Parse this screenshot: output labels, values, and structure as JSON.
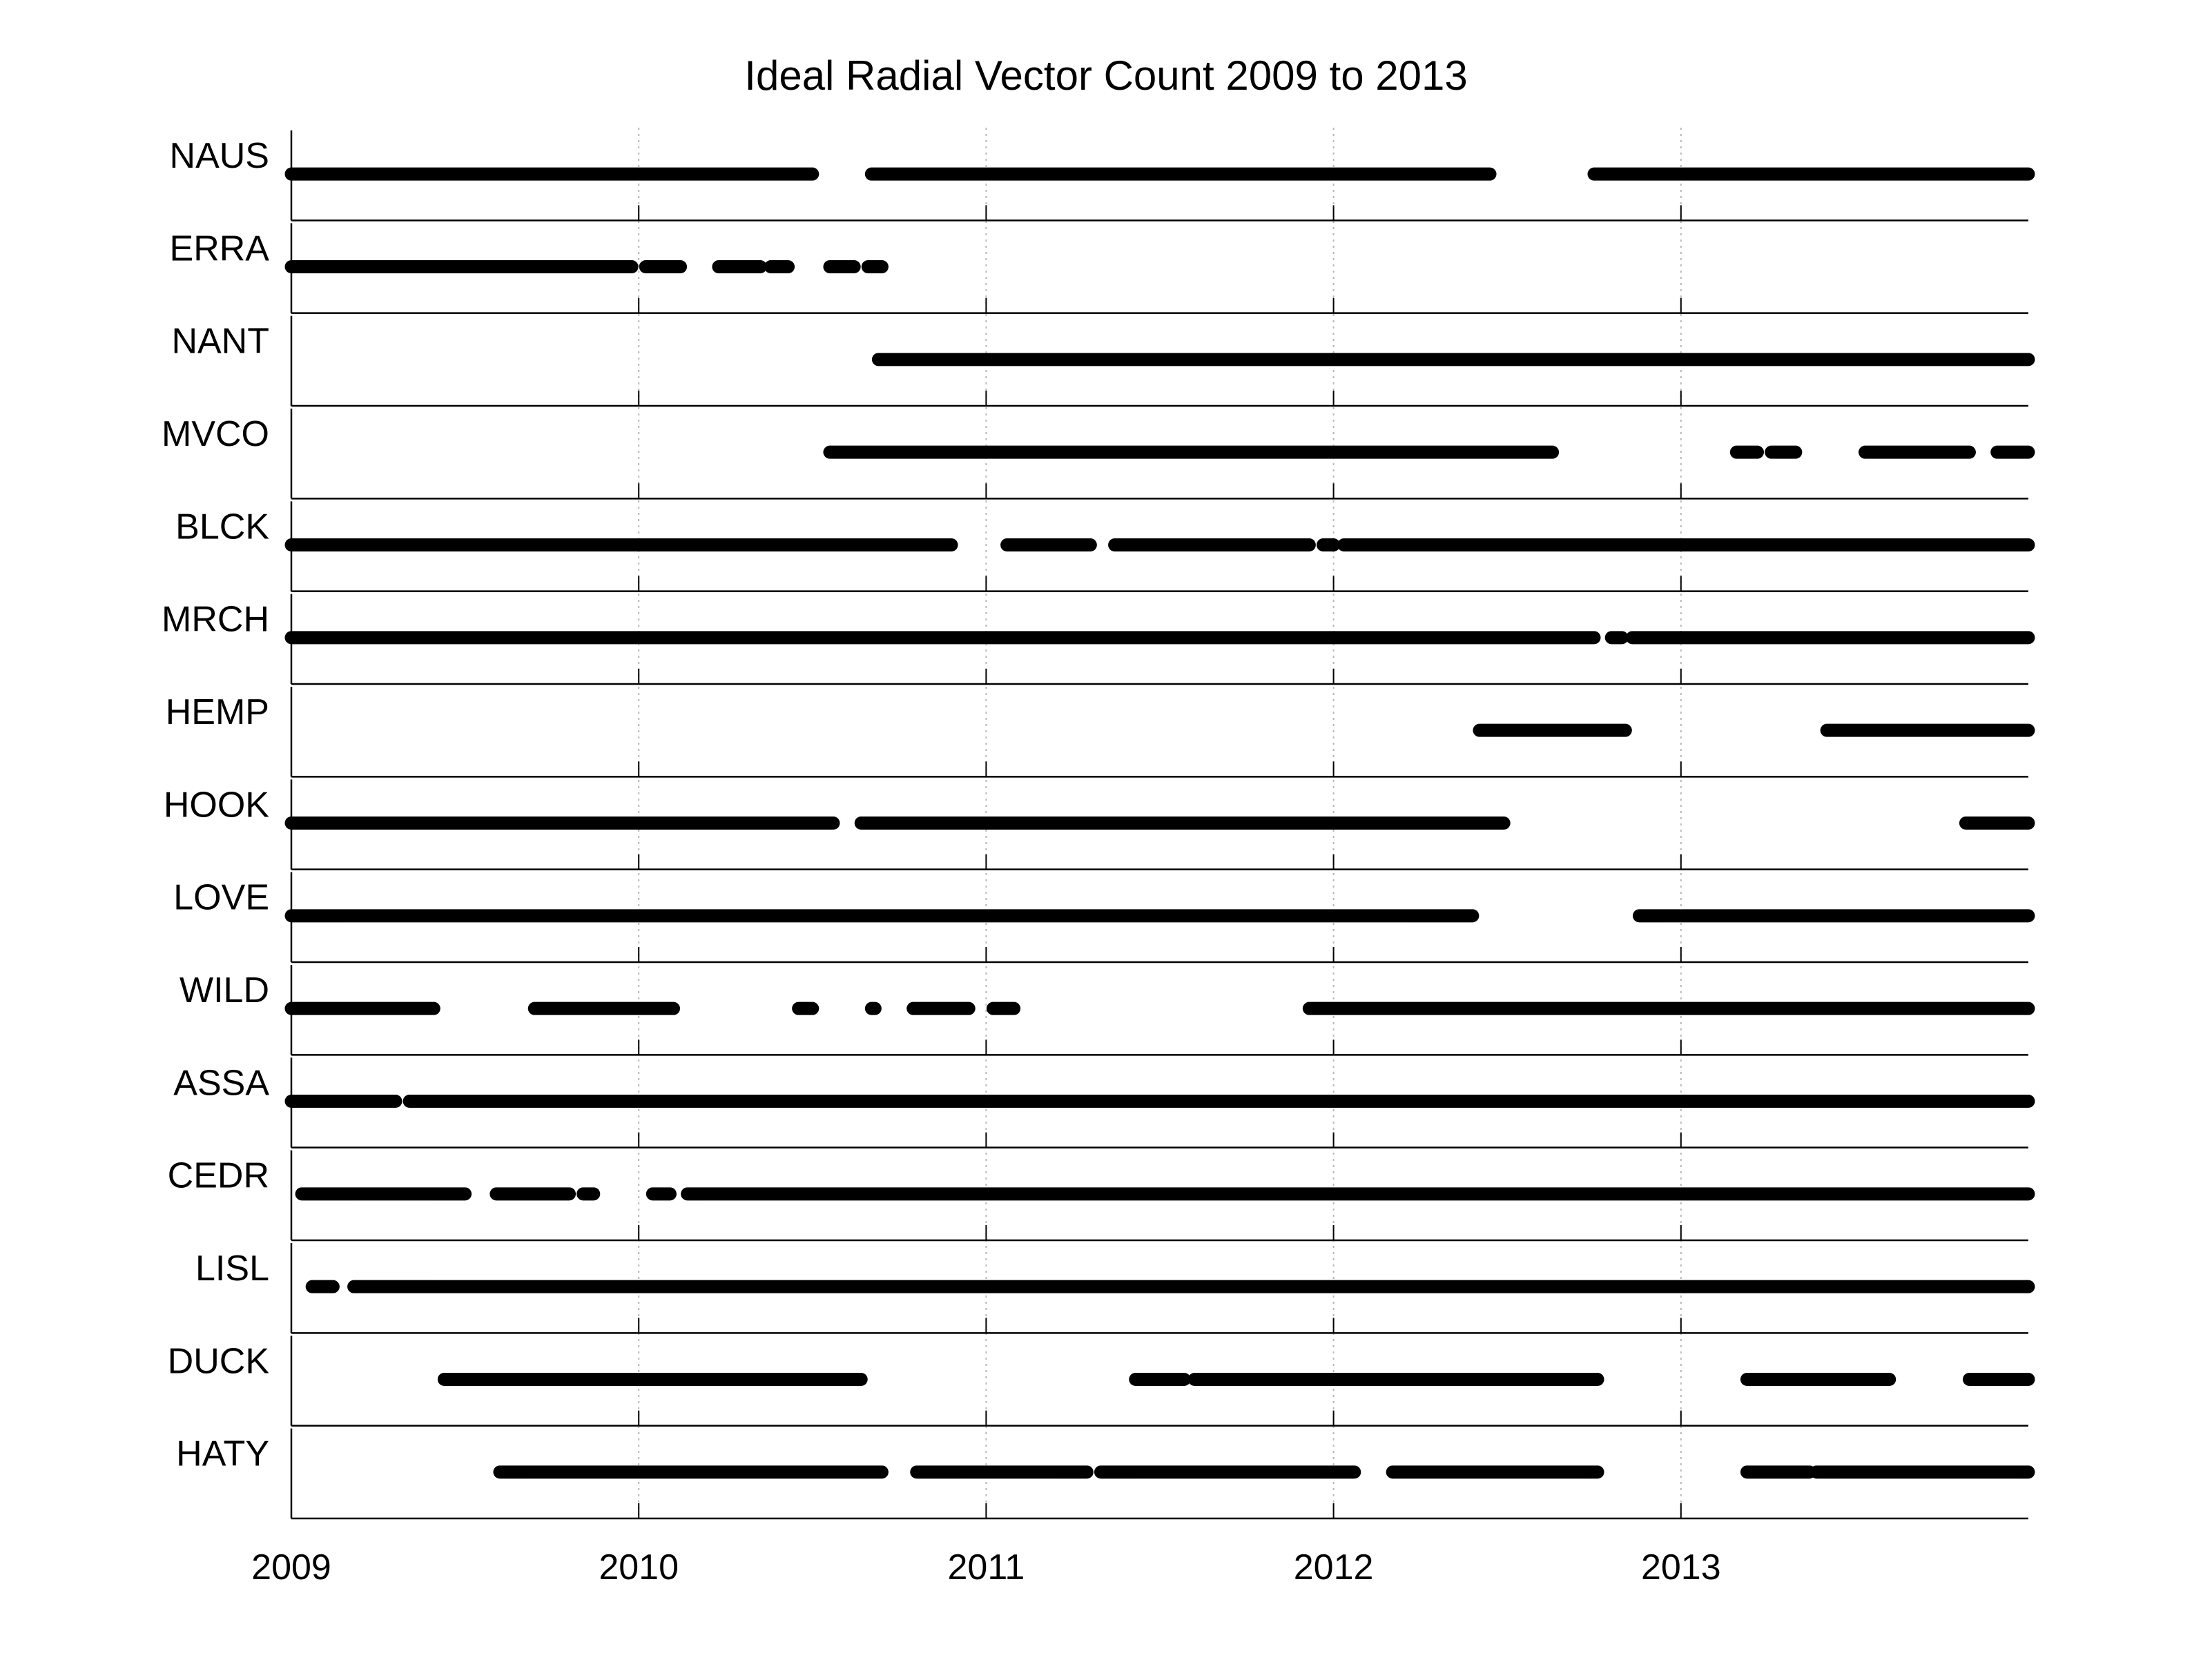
{
  "chart_data": {
    "type": "timeline",
    "title": "Ideal Radial Vector Count 2009 to  2013",
    "x_ticks": [
      "2009",
      "2010",
      "2011",
      "2012",
      "2013"
    ],
    "x_range": [
      2009.0,
      2014.0
    ],
    "grid": "vertical-dotted",
    "series_color": "#000000",
    "series": [
      {
        "name": "NAUS",
        "segments": [
          [
            2009.0,
            2010.5
          ],
          [
            2010.67,
            2012.45
          ],
          [
            2012.75,
            2014.0
          ]
        ]
      },
      {
        "name": "ERRA",
        "segments": [
          [
            2009.0,
            2009.98
          ],
          [
            2010.02,
            2010.12
          ],
          [
            2010.23,
            2010.35
          ],
          [
            2010.38,
            2010.43
          ],
          [
            2010.55,
            2010.62
          ],
          [
            2010.66,
            2010.7
          ]
        ]
      },
      {
        "name": "NANT",
        "segments": [
          [
            2010.69,
            2014.0
          ]
        ]
      },
      {
        "name": "MVCO",
        "segments": [
          [
            2010.55,
            2012.63
          ],
          [
            2013.16,
            2013.22
          ],
          [
            2013.26,
            2013.33
          ],
          [
            2013.53,
            2013.83
          ],
          [
            2013.91,
            2014.0
          ]
        ]
      },
      {
        "name": "BLCK",
        "segments": [
          [
            2009.0,
            2010.9
          ],
          [
            2011.06,
            2011.3
          ],
          [
            2011.37,
            2011.93
          ],
          [
            2011.97,
            2012.0
          ],
          [
            2012.03,
            2014.0
          ]
        ]
      },
      {
        "name": "MRCH",
        "segments": [
          [
            2009.0,
            2012.75
          ],
          [
            2012.8,
            2012.83
          ],
          [
            2012.86,
            2014.0
          ]
        ]
      },
      {
        "name": "HEMP",
        "segments": [
          [
            2012.42,
            2012.84
          ],
          [
            2013.42,
            2014.0
          ]
        ]
      },
      {
        "name": "HOOK",
        "segments": [
          [
            2009.0,
            2010.56
          ],
          [
            2010.64,
            2012.49
          ],
          [
            2013.82,
            2014.0
          ]
        ]
      },
      {
        "name": "LOVE",
        "segments": [
          [
            2009.0,
            2012.4
          ],
          [
            2012.88,
            2014.0
          ]
        ]
      },
      {
        "name": "WILD",
        "segments": [
          [
            2009.0,
            2009.41
          ],
          [
            2009.7,
            2010.1
          ],
          [
            2010.46,
            2010.5
          ],
          [
            2010.67,
            2010.68
          ],
          [
            2010.79,
            2010.95
          ],
          [
            2011.02,
            2011.08
          ],
          [
            2011.93,
            2014.0
          ]
        ]
      },
      {
        "name": "ASSA",
        "segments": [
          [
            2009.0,
            2009.3
          ],
          [
            2009.34,
            2014.0
          ]
        ]
      },
      {
        "name": "CEDR",
        "segments": [
          [
            2009.03,
            2009.5
          ],
          [
            2009.59,
            2009.8
          ],
          [
            2009.84,
            2009.87
          ],
          [
            2010.04,
            2010.09
          ],
          [
            2010.14,
            2014.0
          ]
        ]
      },
      {
        "name": "LISL",
        "segments": [
          [
            2009.06,
            2009.12
          ],
          [
            2009.18,
            2014.0
          ]
        ]
      },
      {
        "name": "DUCK",
        "segments": [
          [
            2009.44,
            2010.64
          ],
          [
            2011.43,
            2011.57
          ],
          [
            2011.6,
            2012.76
          ],
          [
            2013.19,
            2013.6
          ],
          [
            2013.83,
            2014.0
          ]
        ]
      },
      {
        "name": "HATY",
        "segments": [
          [
            2009.6,
            2010.7
          ],
          [
            2010.8,
            2011.29
          ],
          [
            2011.33,
            2012.06
          ],
          [
            2012.17,
            2012.76
          ],
          [
            2013.19,
            2013.37
          ],
          [
            2013.39,
            2014.0
          ]
        ]
      }
    ]
  }
}
